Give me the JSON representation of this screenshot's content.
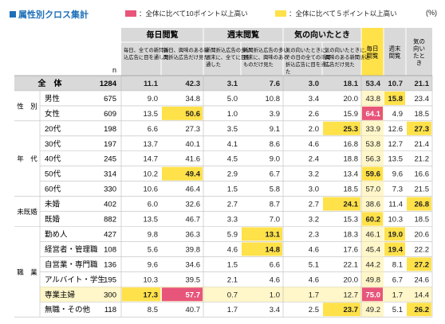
{
  "header": {
    "title": "属性別クロス集計",
    "unit": "(%)",
    "legend_pink": "：全体に比べて10ポイント以上高い",
    "legend_yellow": "：全体に比べて５ポイント以上高い"
  },
  "colors": {
    "accent": "#1e6fb8",
    "pink": "#e8557a",
    "yellow": "#ffe14a",
    "header_bg": "#d9d9d9",
    "total_bg": "#d9d9d9",
    "highlight_col_bg": "#fff6c9"
  },
  "chart_data": {
    "type": "table",
    "n_label": "n",
    "groups": [
      {
        "label": "毎日閲覧",
        "span": 2
      },
      {
        "label": "週末閲覧",
        "span": 2
      },
      {
        "label": "気の向いたとき",
        "span": 2
      }
    ],
    "columns": [
      "毎日、全ての新聞折込広告に目を通した",
      "毎日、興味のある新聞折込広告だけ見た",
      "新聞折込広告の多い週末に、全てに目を通した",
      "新聞折込広告の多い週末に、興味のあるものだけ見た",
      "気の向いたときに、その日の全ての新聞折込広告に目を通した",
      "気の向いたときに、興味のある新聞折込広告だけ見た",
      "毎日閲覧",
      "週末閲覧",
      "気の向いたとき"
    ],
    "rows": [
      {
        "group": "",
        "label": "全　体",
        "n": 1284,
        "values": [
          11.1,
          42.3,
          3.1,
          7.6,
          3.0,
          18.1,
          53.4,
          10.7,
          21.1
        ],
        "hl": [
          0,
          0,
          0,
          0,
          0,
          0,
          0,
          0,
          0
        ],
        "total": true
      },
      {
        "group": "性　別",
        "label": "男性",
        "n": 675,
        "values": [
          9.0,
          34.8,
          5.0,
          10.8,
          3.4,
          20.0,
          43.8,
          15.8,
          23.4
        ],
        "hl": [
          0,
          0,
          0,
          0,
          0,
          0,
          0,
          1,
          0
        ]
      },
      {
        "group": "性　別",
        "label": "女性",
        "n": 609,
        "values": [
          13.5,
          50.6,
          1.0,
          3.9,
          2.6,
          15.9,
          64.1,
          4.9,
          18.5
        ],
        "hl": [
          0,
          1,
          0,
          0,
          0,
          0,
          2,
          0,
          0
        ]
      },
      {
        "group": "年　代",
        "label": "20代",
        "n": 198,
        "values": [
          6.6,
          27.3,
          3.5,
          9.1,
          2.0,
          25.3,
          33.9,
          12.6,
          27.3
        ],
        "hl": [
          0,
          0,
          0,
          0,
          0,
          1,
          0,
          0,
          1
        ]
      },
      {
        "group": "年　代",
        "label": "30代",
        "n": 197,
        "values": [
          13.7,
          40.1,
          4.1,
          8.6,
          4.6,
          16.8,
          53.8,
          12.7,
          21.4
        ],
        "hl": [
          0,
          0,
          0,
          0,
          0,
          0,
          0,
          0,
          0
        ]
      },
      {
        "group": "年　代",
        "label": "40代",
        "n": 245,
        "values": [
          14.7,
          41.6,
          4.5,
          9.0,
          2.4,
          18.8,
          56.3,
          13.5,
          21.2
        ],
        "hl": [
          0,
          0,
          0,
          0,
          0,
          0,
          0,
          0,
          0
        ]
      },
      {
        "group": "年　代",
        "label": "50代",
        "n": 314,
        "values": [
          10.2,
          49.4,
          2.9,
          6.7,
          3.2,
          13.4,
          59.6,
          9.6,
          16.6
        ],
        "hl": [
          0,
          1,
          0,
          0,
          0,
          0,
          1,
          0,
          0
        ]
      },
      {
        "group": "年　代",
        "label": "60代",
        "n": 330,
        "values": [
          10.6,
          46.4,
          1.5,
          5.8,
          3.0,
          18.5,
          57.0,
          7.3,
          21.5
        ],
        "hl": [
          0,
          0,
          0,
          0,
          0,
          0,
          0,
          0,
          0
        ]
      },
      {
        "group": "未既婚",
        "label": "未婚",
        "n": 402,
        "values": [
          6.0,
          32.6,
          2.7,
          8.7,
          2.7,
          24.1,
          38.6,
          11.4,
          26.8
        ],
        "hl": [
          0,
          0,
          0,
          0,
          0,
          1,
          0,
          0,
          1
        ]
      },
      {
        "group": "未既婚",
        "label": "既婚",
        "n": 882,
        "values": [
          13.5,
          46.7,
          3.3,
          7.0,
          3.2,
          15.3,
          60.2,
          10.3,
          18.5
        ],
        "hl": [
          0,
          0,
          0,
          0,
          0,
          0,
          1,
          0,
          0
        ]
      },
      {
        "group": "職　業",
        "label": "勤め人",
        "n": 427,
        "values": [
          9.8,
          36.3,
          5.9,
          13.1,
          2.3,
          18.3,
          46.1,
          19.0,
          20.6
        ],
        "hl": [
          0,
          0,
          0,
          1,
          0,
          0,
          0,
          1,
          0
        ]
      },
      {
        "group": "職　業",
        "label": "経営者・管理職",
        "n": 108,
        "values": [
          5.6,
          39.8,
          4.6,
          14.8,
          4.6,
          17.6,
          45.4,
          19.4,
          22.2
        ],
        "hl": [
          0,
          0,
          0,
          1,
          0,
          0,
          0,
          1,
          0
        ]
      },
      {
        "group": "職　業",
        "label": "自営業・専門職",
        "n": 136,
        "values": [
          9.6,
          34.6,
          1.5,
          6.6,
          5.1,
          22.1,
          44.2,
          8.1,
          27.2
        ],
        "hl": [
          0,
          0,
          0,
          0,
          0,
          0,
          0,
          0,
          1
        ]
      },
      {
        "group": "職　業",
        "label": "アルバイト・学生",
        "n": 195,
        "values": [
          10.3,
          39.5,
          2.1,
          4.6,
          4.6,
          20.0,
          49.8,
          6.7,
          24.6
        ],
        "hl": [
          0,
          0,
          0,
          0,
          0,
          0,
          0,
          0,
          0
        ]
      },
      {
        "group": "職　業",
        "label": "専業主婦",
        "n": 300,
        "values": [
          17.3,
          57.7,
          0.7,
          1.0,
          1.7,
          12.7,
          75.0,
          1.7,
          14.4
        ],
        "hl": [
          1,
          2,
          0,
          0,
          0,
          0,
          2,
          0,
          0
        ],
        "row_fill": true
      },
      {
        "group": "職　業",
        "label": "無職・その他",
        "n": 118,
        "values": [
          8.5,
          40.7,
          1.7,
          3.4,
          2.5,
          23.7,
          49.2,
          5.1,
          26.2
        ],
        "hl": [
          0,
          0,
          0,
          0,
          0,
          1,
          0,
          0,
          1
        ]
      }
    ]
  }
}
